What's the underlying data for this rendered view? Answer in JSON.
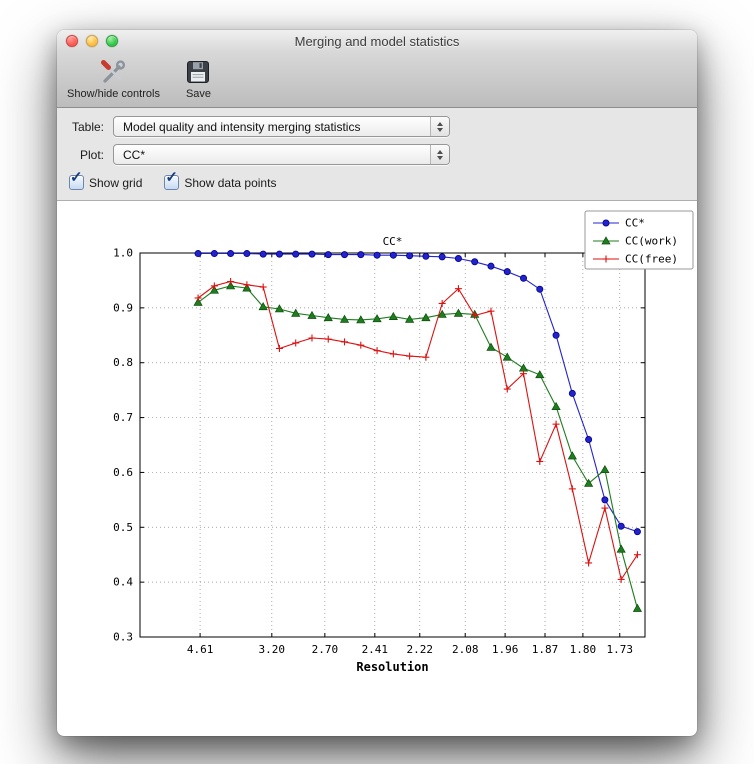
{
  "window": {
    "title": "Merging and model statistics"
  },
  "toolbar": {
    "items": [
      {
        "label": "Show/hide controls",
        "icon": "tools-icon"
      },
      {
        "label": "Save",
        "icon": "save-floppy-icon"
      }
    ]
  },
  "controls": {
    "table_label": "Table:",
    "table_value": "Model quality and intensity merging statistics",
    "plot_label": "Plot:",
    "plot_value": "CC*",
    "checkboxes": [
      {
        "label": "Show grid",
        "checked": true
      },
      {
        "label": "Show data points",
        "checked": true
      }
    ]
  },
  "chart_data": {
    "type": "line",
    "title": "CC*",
    "xlabel": "Resolution",
    "ylabel": "",
    "ylim": [
      0.3,
      1.0
    ],
    "yticks": [
      0.3,
      0.4,
      0.5,
      0.6,
      0.7,
      0.8,
      0.9,
      1.0
    ],
    "xticks": [
      {
        "label": "4.61",
        "pos": 0.119
      },
      {
        "label": "3.20",
        "pos": 0.261
      },
      {
        "label": "2.70",
        "pos": 0.366
      },
      {
        "label": "2.41",
        "pos": 0.465
      },
      {
        "label": "2.22",
        "pos": 0.554
      },
      {
        "label": "2.08",
        "pos": 0.644
      },
      {
        "label": "1.96",
        "pos": 0.723
      },
      {
        "label": "1.87",
        "pos": 0.802
      },
      {
        "label": "1.80",
        "pos": 0.877
      },
      {
        "label": "1.73",
        "pos": 0.95
      }
    ],
    "grid": true,
    "show_data_points": true,
    "legend_position": "upper right",
    "x_span": [
      0.115,
      0.985
    ],
    "series": [
      {
        "name": "CC*",
        "color": "#2323cc",
        "marker": "circle",
        "values": [
          0.999,
          0.999,
          0.999,
          0.999,
          0.998,
          0.998,
          0.998,
          0.998,
          0.997,
          0.997,
          0.997,
          0.996,
          0.996,
          0.995,
          0.994,
          0.993,
          0.99,
          0.984,
          0.976,
          0.966,
          0.954,
          0.934,
          0.85,
          0.744,
          0.66,
          0.55,
          0.502,
          0.492
        ]
      },
      {
        "name": "CC(work)",
        "color": "#1e7d1e",
        "marker": "triangle",
        "values": [
          0.91,
          0.932,
          0.94,
          0.936,
          0.902,
          0.898,
          0.89,
          0.886,
          0.882,
          0.879,
          0.878,
          0.88,
          0.884,
          0.879,
          0.882,
          0.888,
          0.89,
          0.888,
          0.828,
          0.81,
          0.79,
          0.778,
          0.72,
          0.63,
          0.58,
          0.605,
          0.46,
          0.352
        ]
      },
      {
        "name": "CC(free)",
        "color": "#dd1111",
        "marker": "plus",
        "values": [
          0.918,
          0.94,
          0.948,
          0.942,
          0.938,
          0.826,
          0.836,
          0.845,
          0.843,
          0.838,
          0.832,
          0.822,
          0.816,
          0.812,
          0.81,
          0.908,
          0.935,
          0.886,
          0.894,
          0.752,
          0.78,
          0.62,
          0.688,
          0.57,
          0.435,
          0.535,
          0.405,
          0.45
        ]
      }
    ]
  }
}
